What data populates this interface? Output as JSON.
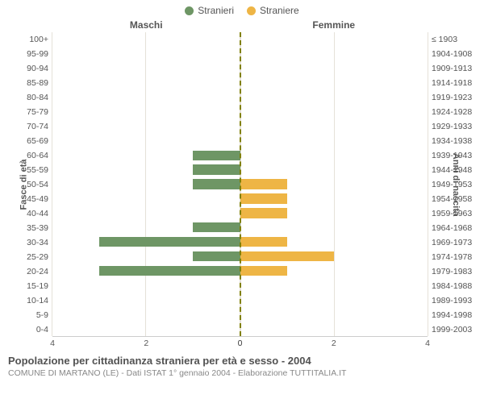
{
  "chart": {
    "type": "population-pyramid",
    "legend": [
      {
        "label": "Stranieri",
        "color": "#6e9665"
      },
      {
        "label": "Straniere",
        "color": "#eeb545"
      }
    ],
    "header_left": "Maschi",
    "header_right": "Femmine",
    "y_axis_left_title": "Fasce di età",
    "y_axis_right_title": "Anni di nascita",
    "x_max": 4,
    "x_ticks": [
      0,
      2,
      4
    ],
    "grid_color": "#e5e1d8",
    "center_line_color": "#808000",
    "background": "#ffffff",
    "label_color": "#555555",
    "label_fontsize": 10.5,
    "male_color": "#6e9665",
    "female_color": "#eeb545",
    "rows": [
      {
        "age": "100+",
        "years": "≤ 1903",
        "m": 0,
        "f": 0
      },
      {
        "age": "95-99",
        "years": "1904-1908",
        "m": 0,
        "f": 0
      },
      {
        "age": "90-94",
        "years": "1909-1913",
        "m": 0,
        "f": 0
      },
      {
        "age": "85-89",
        "years": "1914-1918",
        "m": 0,
        "f": 0
      },
      {
        "age": "80-84",
        "years": "1919-1923",
        "m": 0,
        "f": 0
      },
      {
        "age": "75-79",
        "years": "1924-1928",
        "m": 0,
        "f": 0
      },
      {
        "age": "70-74",
        "years": "1929-1933",
        "m": 0,
        "f": 0
      },
      {
        "age": "65-69",
        "years": "1934-1938",
        "m": 0,
        "f": 0
      },
      {
        "age": "60-64",
        "years": "1939-1943",
        "m": 1,
        "f": 0
      },
      {
        "age": "55-59",
        "years": "1944-1948",
        "m": 1,
        "f": 0
      },
      {
        "age": "50-54",
        "years": "1949-1953",
        "m": 1,
        "f": 1
      },
      {
        "age": "45-49",
        "years": "1954-1958",
        "m": 0,
        "f": 1
      },
      {
        "age": "40-44",
        "years": "1959-1963",
        "m": 0,
        "f": 1
      },
      {
        "age": "35-39",
        "years": "1964-1968",
        "m": 1,
        "f": 0
      },
      {
        "age": "30-34",
        "years": "1969-1973",
        "m": 3,
        "f": 1
      },
      {
        "age": "25-29",
        "years": "1974-1978",
        "m": 1,
        "f": 2
      },
      {
        "age": "20-24",
        "years": "1979-1983",
        "m": 3,
        "f": 1
      },
      {
        "age": "15-19",
        "years": "1984-1988",
        "m": 0,
        "f": 0
      },
      {
        "age": "10-14",
        "years": "1989-1993",
        "m": 0,
        "f": 0
      },
      {
        "age": "5-9",
        "years": "1994-1998",
        "m": 0,
        "f": 0
      },
      {
        "age": "0-4",
        "years": "1999-2003",
        "m": 0,
        "f": 0
      }
    ]
  },
  "footer": {
    "title": "Popolazione per cittadinanza straniera per età e sesso - 2004",
    "subtitle": "COMUNE DI MARTANO (LE) - Dati ISTAT 1° gennaio 2004 - Elaborazione TUTTITALIA.IT"
  }
}
